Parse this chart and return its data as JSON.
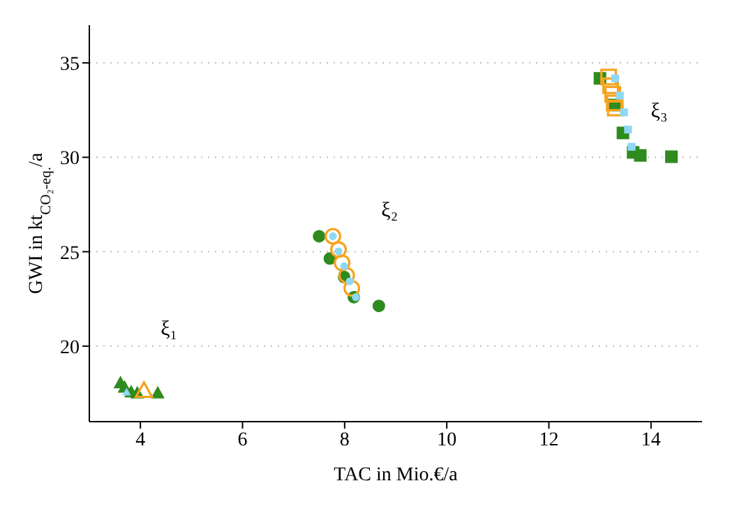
{
  "chart_data": {
    "type": "scatter",
    "xlabel": "TAC in Mio.€/a",
    "ylabel": "GWI in kt$_{CO₂-eq.}$/a",
    "xlim": [
      3,
      15
    ],
    "xticks": [
      4,
      6,
      8,
      10,
      12,
      14
    ],
    "ylim": [
      16,
      37
    ],
    "yticks": [
      20,
      25,
      30,
      35
    ],
    "grid": "y",
    "series": [
      {
        "color": "#2e8b1e",
        "marker": "triangle",
        "x": [
          3.61,
          3.69,
          3.82,
          3.94,
          4.34
        ],
        "values": [
          18.03,
          17.8,
          17.55,
          17.5,
          17.5
        ]
      },
      {
        "color": "#f7a21e",
        "marker": "triangle",
        "x": [
          4.07
        ],
        "values": [
          17.62
        ]
      },
      {
        "color": "#8fd8f5",
        "marker": "triangle",
        "x": [
          3.73
        ],
        "values": [
          17.55
        ]
      },
      {
        "color": "#2e8b1e",
        "marker": "circle",
        "x": [
          7.5,
          7.71,
          7.99,
          8.18,
          8.67
        ],
        "values": [
          25.82,
          24.64,
          23.66,
          22.59,
          22.13
        ]
      },
      {
        "color": "#f7a21e",
        "marker": "circle",
        "x": [
          7.77,
          7.88,
          7.95,
          8.04,
          8.14
        ],
        "values": [
          25.82,
          25.11,
          24.41,
          23.75,
          23.06
        ]
      },
      {
        "color": "#8fd8f5",
        "marker": "circle",
        "x": [
          7.77,
          7.88,
          7.99,
          8.1,
          8.22
        ],
        "values": [
          25.82,
          25.02,
          24.23,
          23.43,
          22.59
        ]
      },
      {
        "color": "#2e8b1e",
        "marker": "square",
        "x": [
          13.0,
          13.28,
          13.45,
          13.65,
          13.79,
          14.4
        ],
        "values": [
          34.18,
          32.77,
          31.29,
          30.26,
          30.1,
          30.03
        ]
      },
      {
        "color": "#f7a21e",
        "marker": "square",
        "x": [
          13.17,
          13.21,
          13.25,
          13.28,
          13.3
        ],
        "values": [
          34.25,
          33.79,
          33.34,
          32.88,
          32.61
        ]
      },
      {
        "color": "#8fd8f5",
        "marker": "square",
        "x": [
          13.3,
          13.39,
          13.47,
          13.55,
          13.62
        ],
        "values": [
          34.18,
          33.27,
          32.38,
          31.47,
          30.56
        ]
      }
    ],
    "annotations": [
      "ξ₁",
      "ξ₂",
      "ξ₃"
    ]
  }
}
